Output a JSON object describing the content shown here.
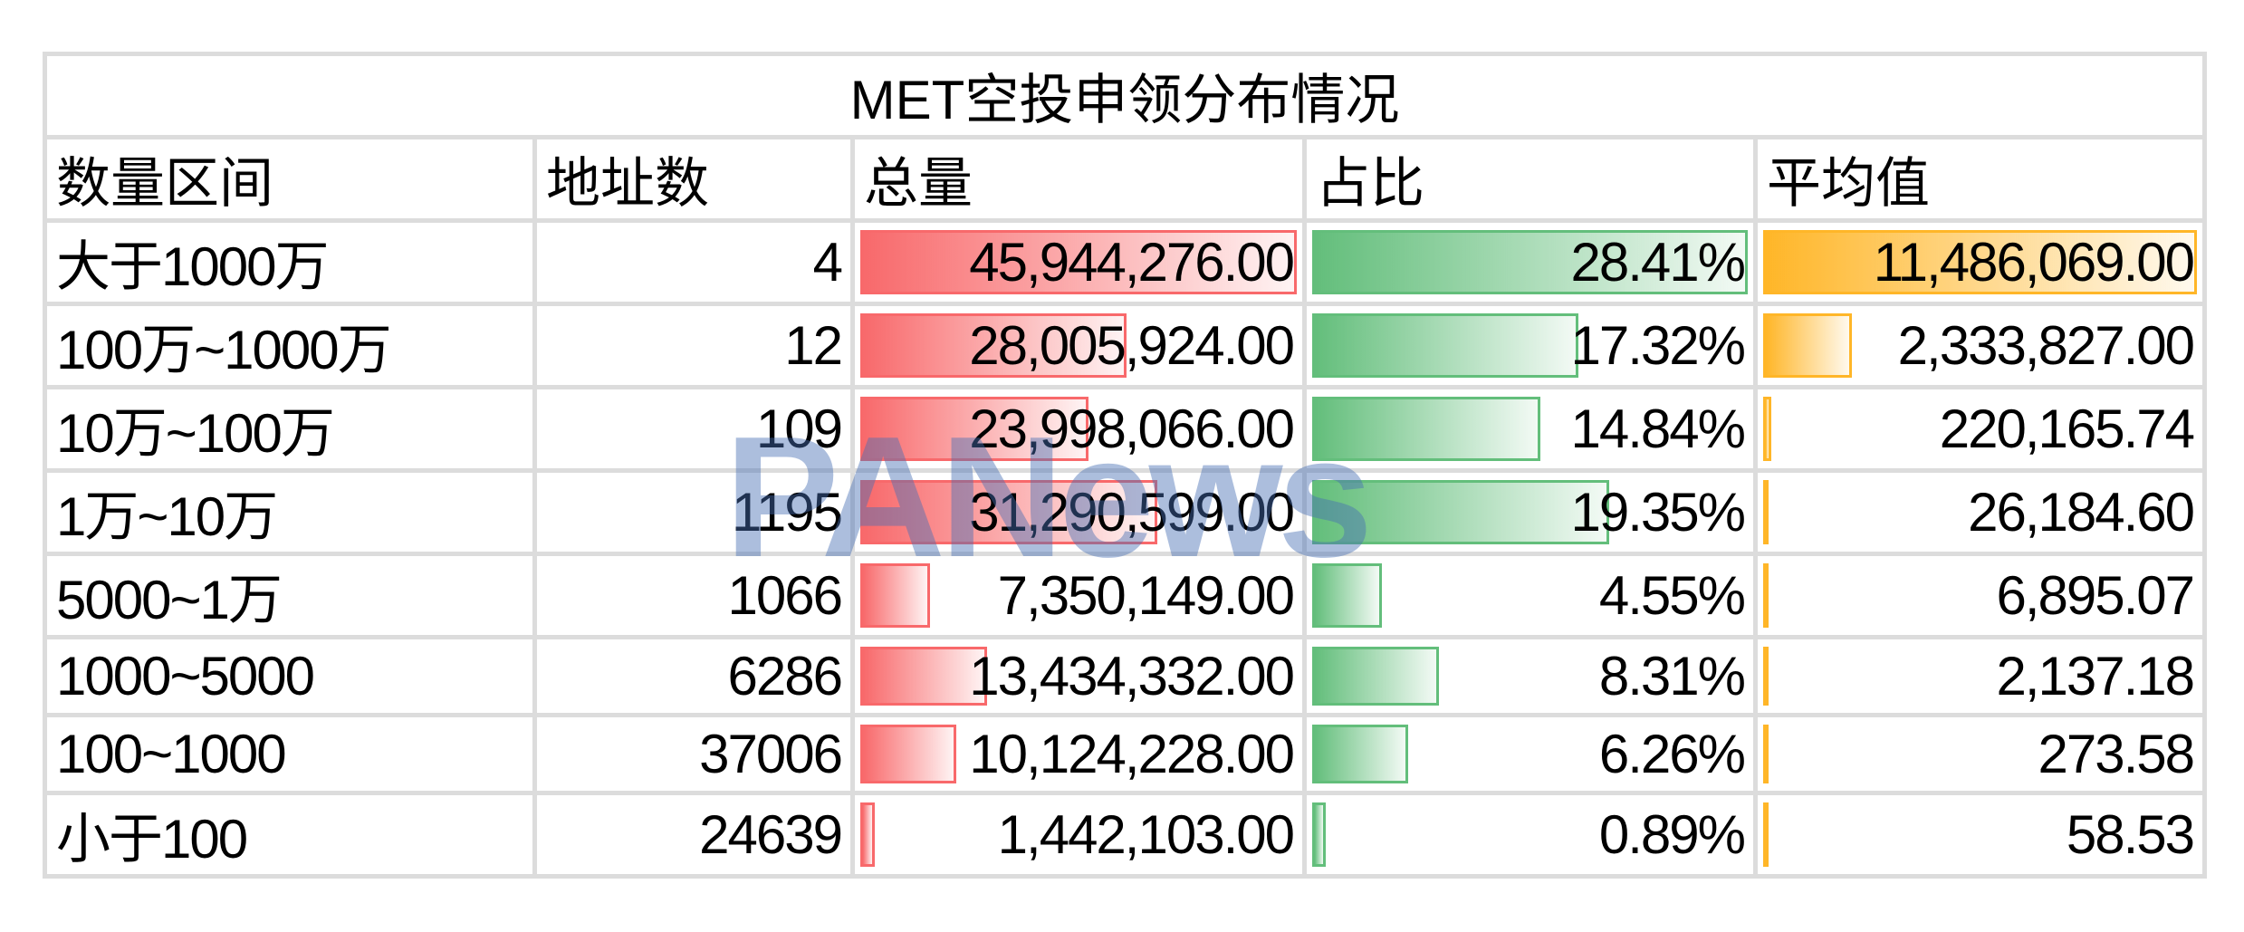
{
  "title": "MET空投申领分布情况",
  "headers": [
    "数量区间",
    "地址数",
    "总量",
    "占比",
    "平均值"
  ],
  "rows": [
    {
      "range": "大于1000万",
      "addresses": "4",
      "total": "45,944,276.00",
      "share": "28.41%",
      "average": "11,486,069.00"
    },
    {
      "range": "100万~1000万",
      "addresses": "12",
      "total": "28,005,924.00",
      "share": "17.32%",
      "average": "2,333,827.00"
    },
    {
      "range": "10万~100万",
      "addresses": "109",
      "total": "23,998,066.00",
      "share": "14.84%",
      "average": "220,165.74"
    },
    {
      "range": "1万~10万",
      "addresses": "1195",
      "total": "31,290,599.00",
      "share": "19.35%",
      "average": "26,184.60"
    },
    {
      "range": "5000~1万",
      "addresses": "1066",
      "total": "7,350,149.00",
      "share": "4.55%",
      "average": "6,895.07"
    },
    {
      "range": "1000~5000",
      "addresses": "6286",
      "total": "13,434,332.00",
      "share": "8.31%",
      "average": "2,137.18"
    },
    {
      "range": "100~1000",
      "addresses": "37006",
      "total": "10,124,228.00",
      "share": "6.26%",
      "average": "273.58"
    },
    {
      "range": "小于100",
      "addresses": "24639",
      "total": "1,442,103.00",
      "share": "0.89%",
      "average": "58.53"
    }
  ],
  "data_bar_colors": {
    "total": "#F8696B",
    "share": "#63BE7B",
    "average": "#FFB628"
  },
  "watermark": "PANews"
}
